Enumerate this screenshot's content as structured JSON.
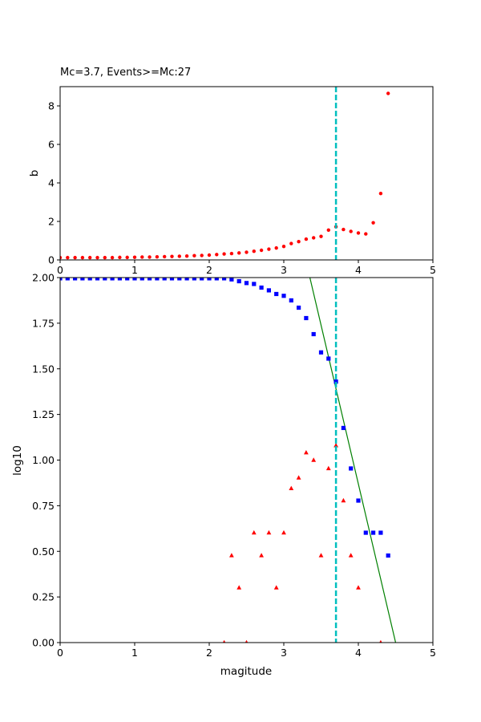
{
  "chart_data": [
    {
      "type": "scatter",
      "title": "Mc=3.7, Events>=Mc:27",
      "xlabel": "",
      "ylabel": "b",
      "xlim": [
        0,
        5
      ],
      "ylim": [
        0,
        9
      ],
      "xticks": [
        "0",
        "1",
        "2",
        "3",
        "4",
        "5"
      ],
      "yticks": [
        "0",
        "2",
        "4",
        "6",
        "8"
      ],
      "grid": false,
      "series": [
        {
          "marker": "circle",
          "color": "#ff0000",
          "x": [
            0.0,
            0.1,
            0.2,
            0.3,
            0.4,
            0.5,
            0.6,
            0.7,
            0.8,
            0.9,
            1.0,
            1.1,
            1.2,
            1.3,
            1.4,
            1.5,
            1.6,
            1.7,
            1.8,
            1.9,
            2.0,
            2.1,
            2.2,
            2.3,
            2.4,
            2.5,
            2.6,
            2.7,
            2.8,
            2.9,
            3.0,
            3.1,
            3.2,
            3.3,
            3.4,
            3.5,
            3.6,
            3.7,
            3.8,
            3.9,
            4.0,
            4.1,
            4.2,
            4.3,
            4.4
          ],
          "y": [
            0.12,
            0.12,
            0.12,
            0.12,
            0.12,
            0.12,
            0.12,
            0.12,
            0.13,
            0.13,
            0.14,
            0.15,
            0.15,
            0.16,
            0.17,
            0.18,
            0.19,
            0.2,
            0.22,
            0.23,
            0.25,
            0.28,
            0.31,
            0.33,
            0.36,
            0.4,
            0.45,
            0.5,
            0.56,
            0.62,
            0.7,
            0.85,
            0.95,
            1.08,
            1.15,
            1.22,
            1.55,
            1.72,
            1.58,
            1.48,
            1.4,
            1.35,
            1.93,
            3.45,
            8.65
          ]
        }
      ],
      "vline": {
        "x": 3.7,
        "color": "#00bfbf",
        "style": "dashed"
      }
    },
    {
      "type": "scatter",
      "title": "",
      "xlabel": "magitude",
      "ylabel": "log10",
      "xlim": [
        0,
        5
      ],
      "ylim": [
        0,
        2.0
      ],
      "xticks": [
        "0",
        "1",
        "2",
        "3",
        "4",
        "5"
      ],
      "yticks": [
        "0.00",
        "0.25",
        "0.50",
        "0.75",
        "1.00",
        "1.25",
        "1.50",
        "1.75",
        "2.00"
      ],
      "grid": false,
      "series": [
        {
          "marker": "square",
          "color": "#0000ff",
          "x": [
            0.0,
            0.1,
            0.2,
            0.3,
            0.4,
            0.5,
            0.6,
            0.7,
            0.8,
            0.9,
            1.0,
            1.1,
            1.2,
            1.3,
            1.4,
            1.5,
            1.6,
            1.7,
            1.8,
            1.9,
            2.0,
            2.1,
            2.2,
            2.3,
            2.4,
            2.5,
            2.6,
            2.7,
            2.8,
            2.9,
            3.0,
            3.1,
            3.2,
            3.3,
            3.4,
            3.5,
            3.6,
            3.7,
            3.8,
            3.9,
            4.0,
            4.1,
            4.2,
            4.3,
            4.4
          ],
          "y": [
            1.996,
            1.996,
            1.996,
            1.996,
            1.996,
            1.996,
            1.996,
            1.996,
            1.996,
            1.996,
            1.996,
            1.996,
            1.996,
            1.996,
            1.996,
            1.996,
            1.996,
            1.996,
            1.996,
            1.996,
            1.996,
            1.996,
            1.996,
            1.99,
            1.98,
            1.97,
            1.965,
            1.945,
            1.93,
            1.91,
            1.9,
            1.875,
            1.835,
            1.778,
            1.69,
            1.59,
            1.556,
            1.43,
            1.176,
            0.954,
            0.778,
            0.602,
            0.602,
            0.602,
            0.477
          ]
        },
        {
          "marker": "triangle",
          "color": "#ff0000",
          "x": [
            2.2,
            2.3,
            2.4,
            2.5,
            2.6,
            2.7,
            2.8,
            2.9,
            3.0,
            3.1,
            3.2,
            3.3,
            3.4,
            3.5,
            3.6,
            3.7,
            3.8,
            3.9,
            4.0,
            4.3
          ],
          "y": [
            0.0,
            0.477,
            0.301,
            0.0,
            0.602,
            0.477,
            0.602,
            0.301,
            0.602,
            0.845,
            0.903,
            1.041,
            1.0,
            0.477,
            0.954,
            1.08,
            0.778,
            0.477,
            0.301,
            0.0
          ]
        }
      ],
      "fit_line": {
        "x": [
          3.35,
          4.5
        ],
        "y": [
          2.0,
          0.0
        ],
        "color": "#008000"
      },
      "vline": {
        "x": 3.7,
        "color": "#00bfbf",
        "style": "dashed"
      }
    }
  ]
}
